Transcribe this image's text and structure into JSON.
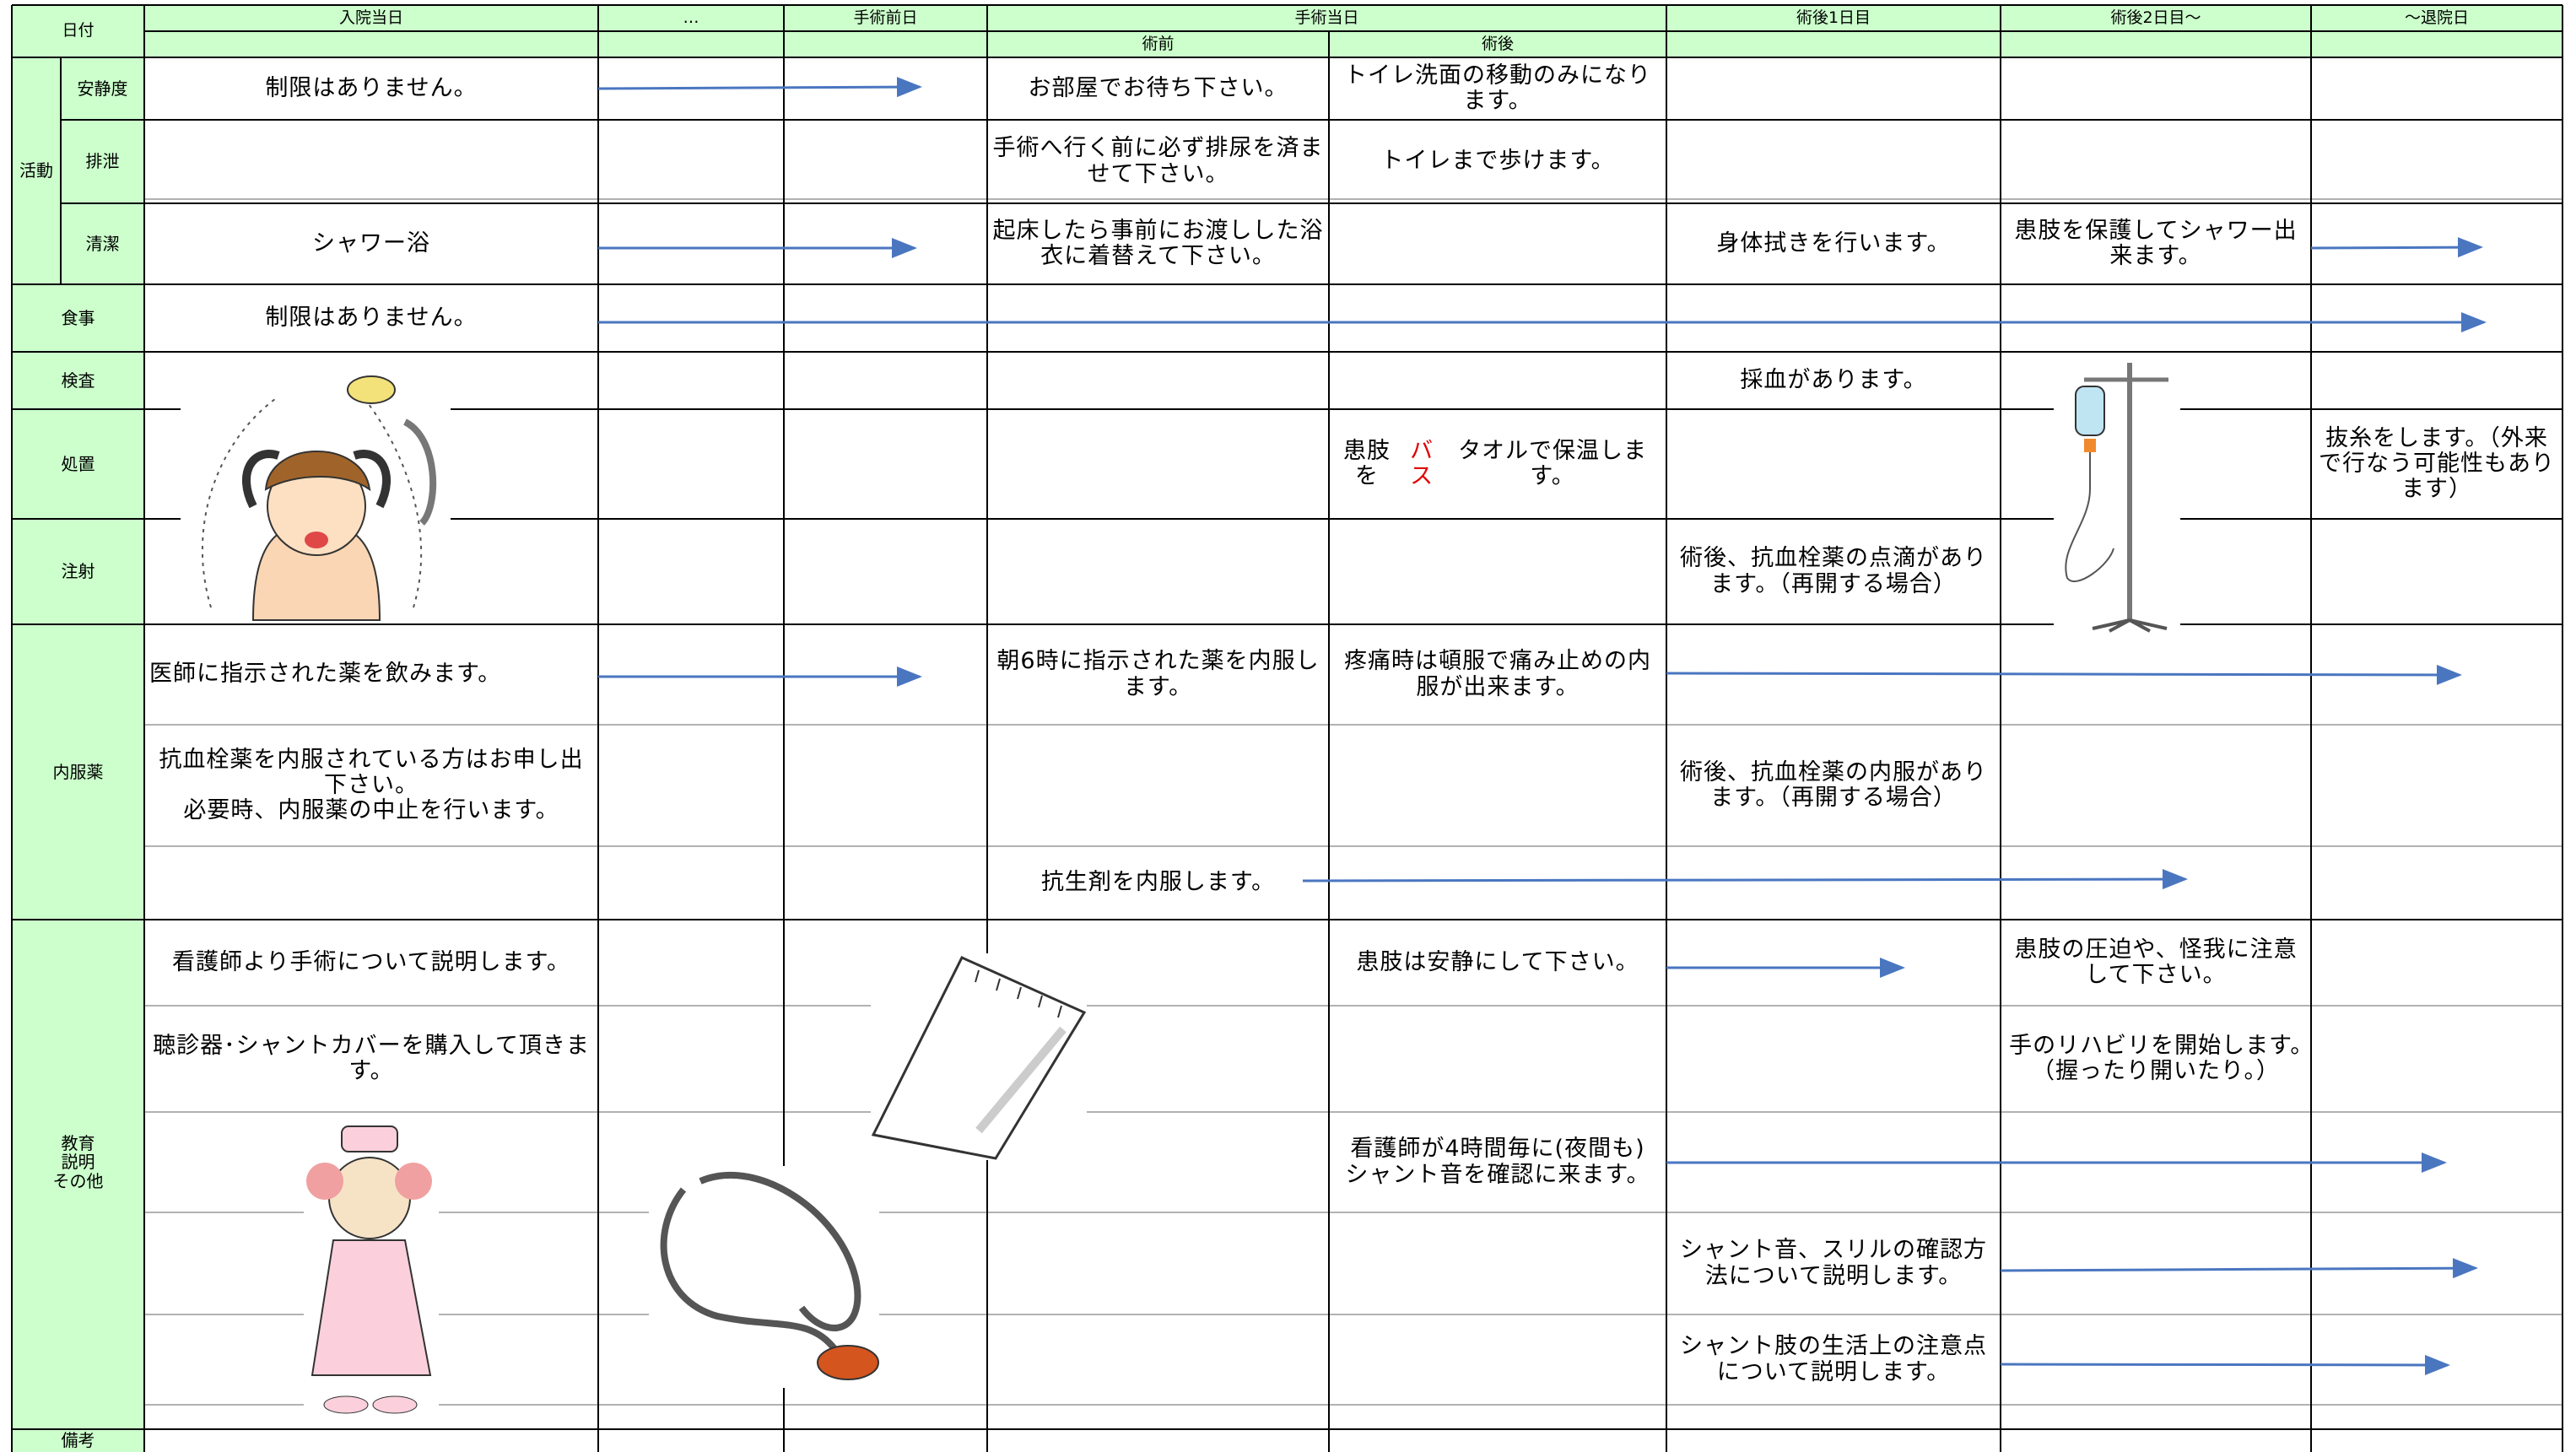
{
  "header": {
    "date_label": "日付",
    "days": [
      "入院当日",
      "…",
      "手術前日",
      "手術当日",
      "術後1日目",
      "術後2日目～",
      "～退院日"
    ],
    "surgery_day_parts": [
      "術前",
      "術後"
    ]
  },
  "sections": [
    {
      "label": "活動",
      "rows": [
        {
          "label": "安静度",
          "cells": [
            "制限はありません。",
            "お部屋でお待ち下さい。",
            "トイレ洗面の移動のみになります。"
          ]
        },
        {
          "label": "排泄",
          "cells": [
            "手術へ行く前に必ず排尿を済ませて下さい。",
            "トイレまで歩けます。"
          ]
        },
        {
          "label": "清潔",
          "cells": [
            "シャワー浴",
            "起床したら事前にお渡しした浴衣に着替えて下さい。",
            "身体拭きを行います。",
            "患肢を保護してシャワー出来ます。"
          ]
        }
      ]
    },
    {
      "label": "食事",
      "rows": [
        {
          "cells": [
            "制限はありません。"
          ]
        }
      ]
    },
    {
      "label": "検査",
      "rows": [
        {
          "cells": [
            "採血があります。"
          ]
        }
      ]
    },
    {
      "label": "処置",
      "rows": [
        {
          "cells": [
            [
              "患肢を",
              "バス",
              "タオルで保温します。"
            ],
            "抜糸をします。（外来で行なう可能性もあります）"
          ]
        }
      ]
    },
    {
      "label": "注射",
      "rows": [
        {
          "cells": [
            "術後、抗血栓薬の点滴があります。（再開する場合）"
          ]
        }
      ]
    },
    {
      "label": "内服薬",
      "rows": [
        {
          "cells": [
            "医師に指示された薬を飲みます。",
            "朝6時に指示された薬を内服します。",
            "疼痛時は頓服で痛み止めの内服が出来ます。"
          ]
        },
        {
          "cells": [
            "抗血栓薬を内服されている方はお申し出下さい。\n必要時、内服薬の中止を行います。",
            "術後、抗血栓薬の内服があります。（再開する場合）"
          ]
        },
        {
          "cells": [
            "抗生剤を内服します。"
          ]
        }
      ]
    },
    {
      "label": "教育\n説明\nその他",
      "rows": [
        {
          "cells": [
            "看護師より手術について説明します。",
            "患肢は安静にして下さい。",
            "患肢の圧迫や、怪我に注意して下さい。"
          ]
        },
        {
          "cells": [
            "聴診器･シャントカバーを購入して頂きます。",
            "手のリハビリを開始します。　　　　（握ったり開いたり。）"
          ]
        },
        {
          "cells": [
            "看護師が4時間毎に(夜間も)\nシャント音を確認に来ます。"
          ]
        },
        {
          "cells": [
            "シャント音、スリルの確認方法について説明します。"
          ]
        },
        {
          "cells": [
            "シャント肢の生活上の注意点について説明します。"
          ]
        }
      ]
    },
    {
      "label": "備考",
      "rows": []
    }
  ]
}
